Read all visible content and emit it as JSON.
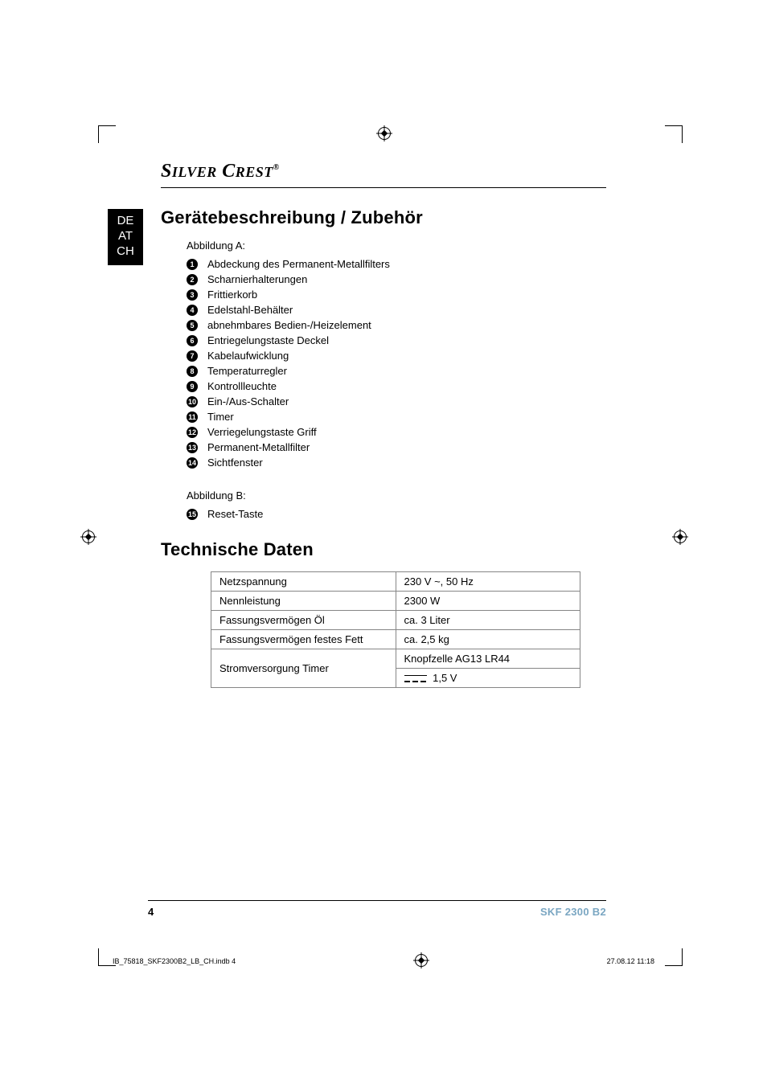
{
  "brand": "SilverCrest",
  "brand_reg": "®",
  "lang_tab": [
    "DE",
    "AT",
    "CH"
  ],
  "section1": {
    "title": "Gerätebeschreibung / Zubehör",
    "subA": "Abbildung A:",
    "itemsA": [
      {
        "n": "1",
        "label": "Abdeckung des Permanent-Metallfilters"
      },
      {
        "n": "2",
        "label": "Scharnierhalterungen"
      },
      {
        "n": "3",
        "label": "Frittierkorb"
      },
      {
        "n": "4",
        "label": "Edelstahl-Behälter"
      },
      {
        "n": "5",
        "label": "abnehmbares Bedien-/Heizelement"
      },
      {
        "n": "6",
        "label": "Entriegelungstaste Deckel"
      },
      {
        "n": "7",
        "label": "Kabelaufwicklung"
      },
      {
        "n": "8",
        "label": "Temperaturregler"
      },
      {
        "n": "9",
        "label": "Kontrollleuchte"
      },
      {
        "n": "10",
        "label": "Ein-/Aus-Schalter"
      },
      {
        "n": "11",
        "label": "Timer"
      },
      {
        "n": "12",
        "label": "Verriegelungstaste Griff"
      },
      {
        "n": "13",
        "label": "Permanent-Metallfilter"
      },
      {
        "n": "14",
        "label": "Sichtfenster"
      }
    ],
    "subB": "Abbildung B:",
    "itemsB": [
      {
        "n": "15",
        "label": "Reset-Taste"
      }
    ]
  },
  "section2": {
    "title": "Technische Daten",
    "rows": [
      {
        "k": "Netzspannung",
        "v": "230 V ~, 50 Hz"
      },
      {
        "k": "Nennleistung",
        "v": "2300 W"
      },
      {
        "k": "Fassungsvermögen Öl",
        "v": "ca. 3 Liter"
      },
      {
        "k": "Fassungsvermögen festes Fett",
        "v": "ca. 2,5 kg"
      }
    ],
    "timer_row": {
      "k": "Stromversorgung Timer",
      "v1": "Knopfzelle AG13 LR44",
      "v2": "1,5 V"
    }
  },
  "footer": {
    "page": "4",
    "model": "SKF 2300 B2"
  },
  "imprint": {
    "left": "IB_75818_SKF2300B2_LB_CH.indb   4",
    "right": "27.08.12   11:18"
  },
  "colors": {
    "text": "#000000",
    "table_border": "#868686",
    "model": "#7aa6c2",
    "background": "#ffffff"
  }
}
